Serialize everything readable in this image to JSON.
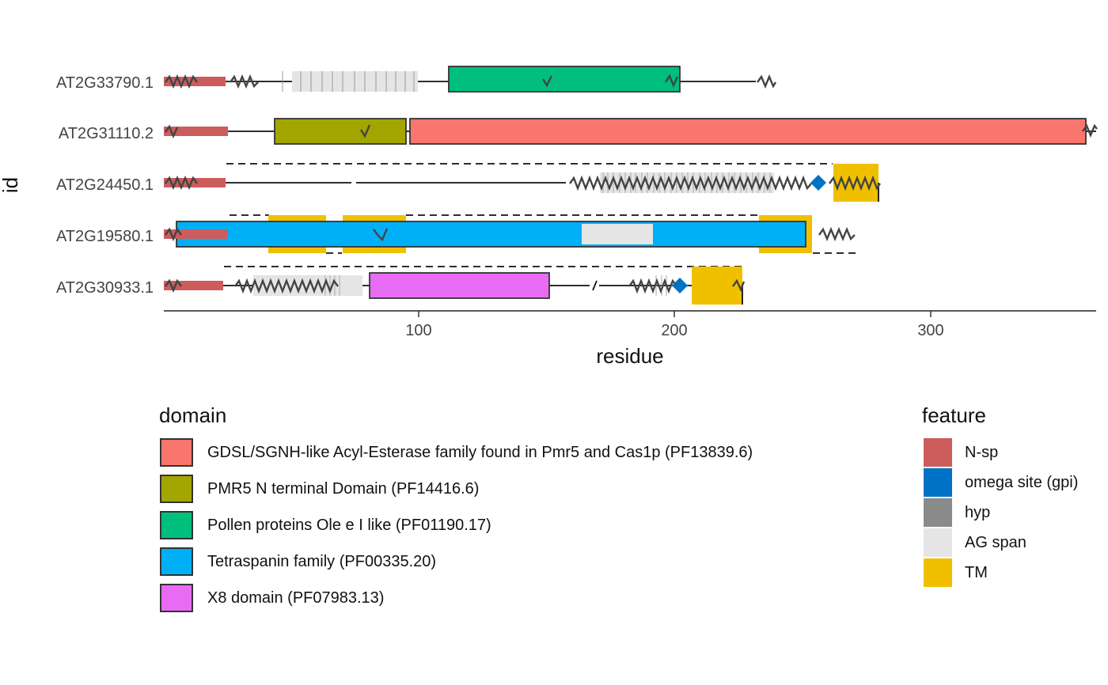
{
  "axes": {
    "x_label": "residue",
    "y_label": "id",
    "x_ticks": [
      "100",
      "200",
      "300"
    ]
  },
  "proteins": [
    "AT2G33790.1",
    "AT2G31110.2",
    "AT2G24450.1",
    "AT2G19580.1",
    "AT2G30933.1"
  ],
  "legend_domain": {
    "title": "domain",
    "items": [
      {
        "label": "GDSL/SGNH-like Acyl-Esterase family found in Pmr5 and Cas1p (PF13839.6)",
        "color": "#F8766D"
      },
      {
        "label": "PMR5 N terminal Domain (PF14416.6)",
        "color": "#A3A500"
      },
      {
        "label": "Pollen proteins Ole e I like (PF01190.17)",
        "color": "#00BF7D"
      },
      {
        "label": "Tetraspanin family (PF00335.20)",
        "color": "#00B0F6"
      },
      {
        "label": "X8 domain (PF07983.13)",
        "color": "#E76BF3"
      }
    ]
  },
  "legend_feature": {
    "title": "feature",
    "items": [
      {
        "label": "N-sp",
        "color": "#CD5C5C"
      },
      {
        "label": "omega site (gpi)",
        "color": "#0072C6"
      },
      {
        "label": "hyp",
        "color": "#8A8A8A"
      },
      {
        "label": "AG span",
        "color": "#E5E5E5"
      },
      {
        "label": "TM",
        "color": "#F0C000"
      }
    ]
  }
}
